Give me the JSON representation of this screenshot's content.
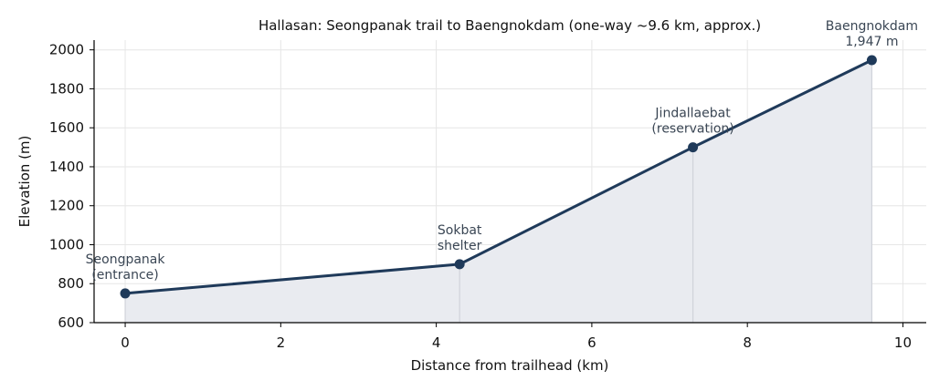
{
  "chart_data": {
    "type": "line",
    "title": "Hallasan: Seongpanak trail to Baengnokdam (one-way ~9.6 km, approx.)",
    "xlabel": "Distance from trailhead (km)",
    "ylabel": "Elevation (m)",
    "xlim": [
      -0.4,
      10.3
    ],
    "ylim": [
      600,
      2050
    ],
    "xticks": [
      0,
      2,
      4,
      6,
      8,
      10
    ],
    "yticks": [
      600,
      800,
      1000,
      1200,
      1400,
      1600,
      1800,
      2000
    ],
    "grid": true,
    "area_fill": true,
    "colors": {
      "line": "#1f3a5a",
      "fill": "#e9ebf0",
      "annotation": "#3a4654",
      "dropline": "#d0d3da"
    },
    "points": [
      {
        "x": 0,
        "y": 750,
        "label": [
          "Seongpanak",
          "(entrance)"
        ]
      },
      {
        "x": 4.3,
        "y": 900,
        "label": [
          "Sokbat",
          "shelter"
        ]
      },
      {
        "x": 7.3,
        "y": 1500,
        "label": [
          "Jindallaebat",
          "(reservation)"
        ]
      },
      {
        "x": 9.6,
        "y": 1947,
        "label": [
          "Baengnokdam",
          "1,947 m"
        ]
      }
    ]
  }
}
